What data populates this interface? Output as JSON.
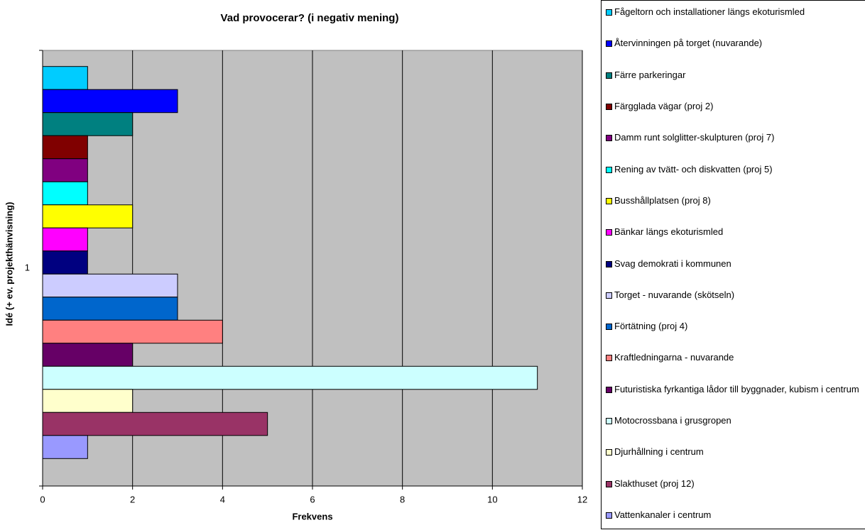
{
  "chart_data": {
    "type": "bar",
    "orientation": "horizontal",
    "title": "Vad provocerar? (i negativ mening)",
    "x_label": "Frekvens",
    "y_label": "Idé (+ ev. projekthänvisning)",
    "categories": [
      "1"
    ],
    "xlim": [
      0,
      12
    ],
    "xticks": [
      0,
      2,
      4,
      6,
      8,
      10,
      12
    ],
    "grid": true,
    "legend": "right",
    "series": [
      {
        "name": "Fågeltorn och installationer längs ekoturismled",
        "color": "#00ccff",
        "values": [
          1
        ]
      },
      {
        "name": "Återvinningen på torget (nuvarande)",
        "color": "#0000ff",
        "values": [
          3
        ]
      },
      {
        "name": "Färre parkeringar",
        "color": "#008080",
        "values": [
          2
        ]
      },
      {
        "name": "Färgglada vägar (proj 2)",
        "color": "#800000",
        "values": [
          1
        ]
      },
      {
        "name": "Damm runt solglitter-skulpturen (proj 7)",
        "color": "#800080",
        "values": [
          1
        ]
      },
      {
        "name": "Rening av tvätt- och diskvatten (proj 5)",
        "color": "#00ffff",
        "values": [
          1
        ]
      },
      {
        "name": "Busshållplatsen (proj 8)",
        "color": "#ffff00",
        "values": [
          2
        ]
      },
      {
        "name": "Bänkar längs ekoturismled",
        "color": "#ff00ff",
        "values": [
          1
        ]
      },
      {
        "name": "Svag demokrati i kommunen",
        "color": "#000080",
        "values": [
          1
        ]
      },
      {
        "name": "Torget - nuvarande (skötseln)",
        "color": "#ccccff",
        "values": [
          3
        ]
      },
      {
        "name": "Förtätning (proj 4)",
        "color": "#0066cc",
        "values": [
          3
        ]
      },
      {
        "name": "Kraftledningarna - nuvarande",
        "color": "#ff8080",
        "values": [
          4
        ]
      },
      {
        "name": "Futuristiska fyrkantiga lådor till byggnader, kubism i centrum",
        "color": "#660066",
        "values": [
          2
        ]
      },
      {
        "name": "Motocrossbana i grusgropen",
        "color": "#ccffff",
        "values": [
          11
        ]
      },
      {
        "name": "Djurhållning i centrum",
        "color": "#ffffcc",
        "values": [
          2
        ]
      },
      {
        "name": "Slakthuset (proj 12)",
        "color": "#993366",
        "values": [
          5
        ]
      },
      {
        "name": "Vattenkanaler i centrum",
        "color": "#9999ff",
        "values": [
          1
        ]
      }
    ]
  }
}
